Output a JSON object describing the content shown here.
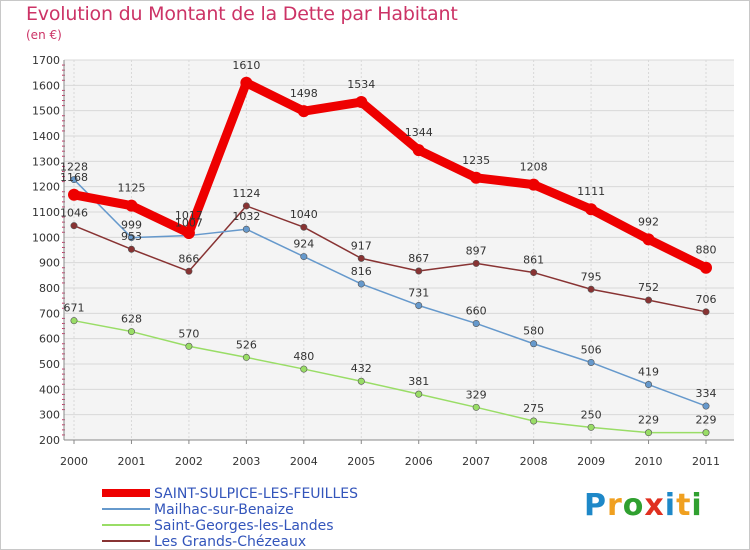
{
  "header": {
    "title": "Evolution du Montant de la Dette par Habitant",
    "unit": "(en €)"
  },
  "logo": {
    "letters": [
      "P",
      "r",
      "o",
      "x",
      "i",
      "t",
      "i"
    ],
    "colors": [
      "#1e88c8",
      "#f0a020",
      "#30a030",
      "#e03020",
      "#1e88c8",
      "#f0a020",
      "#30a030"
    ]
  },
  "chart_data": {
    "type": "line",
    "title": "Evolution du Montant de la Dette par Habitant",
    "subtitle": "(en €)",
    "xlabel": "",
    "ylabel": "",
    "x": [
      "2000",
      "2001",
      "2002",
      "2003",
      "2004",
      "2005",
      "2006",
      "2007",
      "2008",
      "2009",
      "2010",
      "2011"
    ],
    "ylim": [
      200,
      1700
    ],
    "yticks": [
      200,
      300,
      400,
      500,
      600,
      700,
      800,
      900,
      1000,
      1100,
      1200,
      1300,
      1400,
      1500,
      1600,
      1700
    ],
    "grid": true,
    "legend": "bottom-left",
    "series": [
      {
        "name": "SAINT-SULPICE-LES-FEUILLES",
        "color": "#ee0000",
        "values": [
          1168,
          1125,
          1017,
          1610,
          1498,
          1534,
          1344,
          1235,
          1208,
          1111,
          992,
          880
        ],
        "labels": [
          "1168",
          "1125",
          "1017",
          "1610",
          "1498",
          "1534",
          "1344",
          "1235",
          "1208",
          "1111",
          "992",
          "880"
        ]
      },
      {
        "name": "Mailhac-sur-Benaize",
        "color": "#6699cc",
        "values": [
          1228,
          999,
          1007,
          1032,
          924,
          816,
          731,
          660,
          580,
          506,
          419,
          334
        ],
        "labels": [
          "1228",
          "999",
          "1007",
          "1032",
          "924",
          "816",
          "731",
          "660",
          "580",
          "506",
          "419",
          "334"
        ]
      },
      {
        "name": "Saint-Georges-les-Landes",
        "color": "#99dd66",
        "values": [
          671,
          628,
          570,
          526,
          480,
          432,
          381,
          329,
          275,
          250,
          229,
          229
        ],
        "labels": [
          "671",
          "628",
          "570",
          "526",
          "480",
          "432",
          "381",
          "329",
          "275",
          "250",
          "229",
          "229"
        ]
      },
      {
        "name": "Les Grands-Chézeaux",
        "color": "#883333",
        "values": [
          1046,
          953,
          866,
          1124,
          1040,
          917,
          867,
          897,
          861,
          795,
          752,
          706
        ],
        "labels": [
          "1046",
          "953",
          "866",
          "1124",
          "1040",
          "917",
          "867",
          "897",
          "861",
          "795",
          "752",
          "706"
        ]
      }
    ]
  }
}
